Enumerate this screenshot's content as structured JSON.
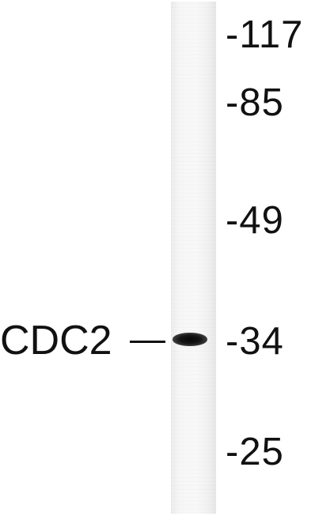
{
  "blot": {
    "target": {
      "label": "CDC2"
    },
    "markers": [
      {
        "label": "-117"
      },
      {
        "label": "-85"
      },
      {
        "label": "-49"
      },
      {
        "label": "-34"
      },
      {
        "label": "-25"
      }
    ],
    "colors": {
      "background": "#ffffff",
      "lane": "#f4f4f4",
      "band": "#111111",
      "text": "#111111"
    }
  }
}
